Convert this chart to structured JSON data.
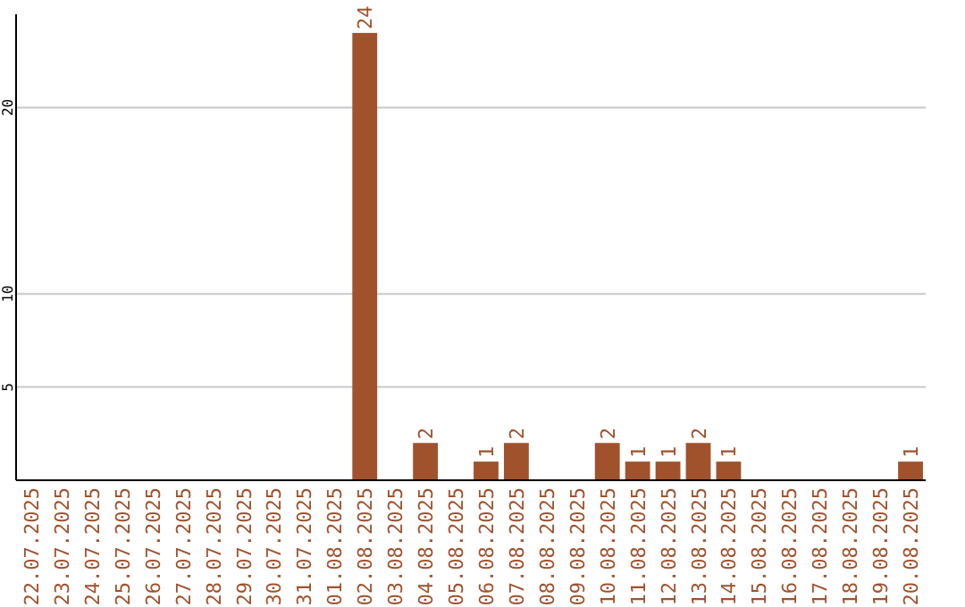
{
  "chart_data": {
    "type": "bar",
    "categories": [
      "22.07.2025",
      "23.07.2025",
      "24.07.2025",
      "25.07.2025",
      "26.07.2025",
      "27.07.2025",
      "28.07.2025",
      "29.07.2025",
      "30.07.2025",
      "31.07.2025",
      "01.08.2025",
      "02.08.2025",
      "03.08.2025",
      "04.08.2025",
      "05.08.2025",
      "06.08.2025",
      "07.08.2025",
      "08.08.2025",
      "09.08.2025",
      "10.08.2025",
      "11.08.2025",
      "12.08.2025",
      "13.08.2025",
      "14.08.2025",
      "15.08.2025",
      "16.08.2025",
      "17.08.2025",
      "18.08.2025",
      "19.08.2025",
      "20.08.2025"
    ],
    "values": [
      0,
      0,
      0,
      0,
      0,
      0,
      0,
      0,
      0,
      0,
      0,
      24,
      0,
      2,
      0,
      1,
      2,
      0,
      0,
      2,
      1,
      1,
      2,
      1,
      0,
      0,
      0,
      0,
      0,
      1
    ],
    "value_labels": [
      null,
      null,
      null,
      null,
      null,
      null,
      null,
      null,
      null,
      null,
      null,
      "24",
      null,
      "2",
      null,
      "1",
      "2",
      null,
      null,
      "2",
      "1",
      "1",
      "2",
      "1",
      null,
      null,
      null,
      null,
      null,
      "1"
    ],
    "color": "#a0522d",
    "ylim": [
      0,
      25
    ],
    "yticks": [
      5,
      10,
      20
    ],
    "grid": "y"
  }
}
